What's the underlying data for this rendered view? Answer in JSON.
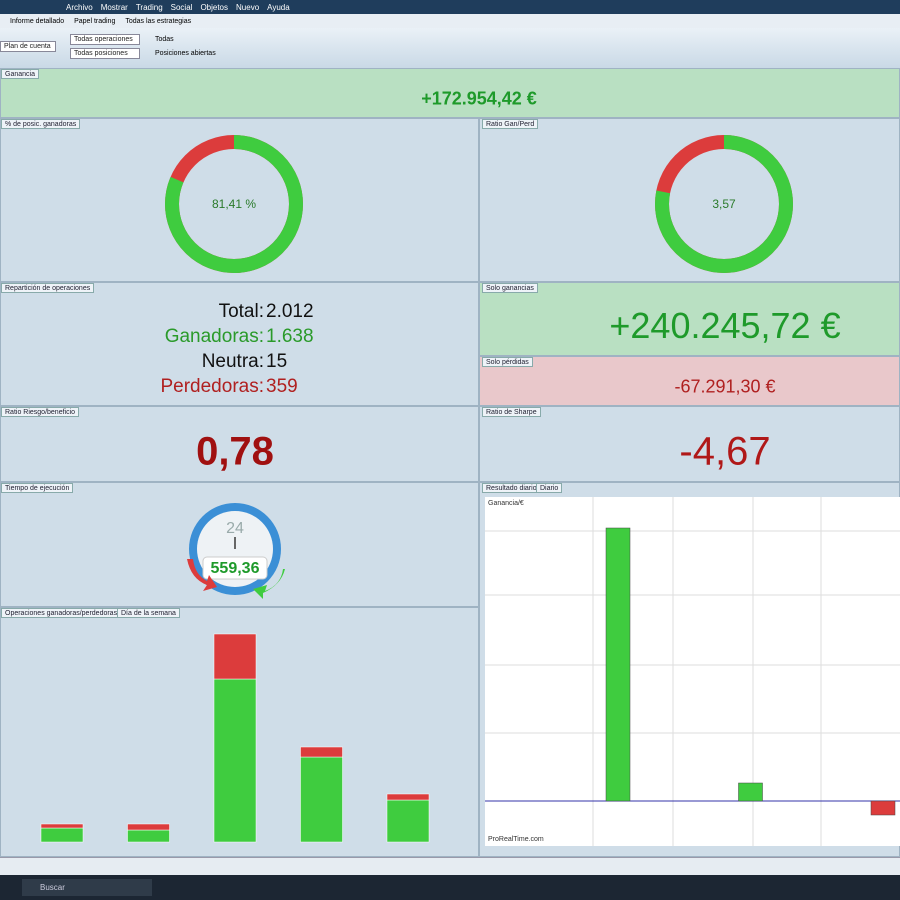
{
  "menu": [
    "Archivo",
    "Mostrar",
    "Trading",
    "Social",
    "Objetos",
    "Nuevo",
    "Ayuda"
  ],
  "toolbar": [
    "Informe detallado",
    "Papel trading",
    "Todas las estrategias"
  ],
  "filters": [
    "Todas operaciones",
    "Todas posiciones",
    "Todas",
    "Posiciones abiertas",
    "Plan de cuenta"
  ],
  "panels": {
    "profit": {
      "title": "Ganancia",
      "value": "+172.954,42 €"
    },
    "win_rate": {
      "title": "% de posic. ganadoras",
      "value": 81.41,
      "label": "81,41 %"
    },
    "gain_loss_ratio": {
      "title": "Ratio Gan/Perd",
      "value": 3.57,
      "label": "3,57"
    },
    "breakdown": {
      "title": "Repartición de operaciones",
      "rows": [
        {
          "label": "Total:",
          "value": "2.012"
        },
        {
          "label": "Ganadoras:",
          "value": "1.638"
        },
        {
          "label": "Neutra:",
          "value": "15"
        },
        {
          "label": "Perdedoras:",
          "value": "359"
        }
      ]
    },
    "gains": {
      "title": "Solo ganancias",
      "value": "+240.245,72 €"
    },
    "losses": {
      "title": "Solo pérdidas",
      "value": "-67.291,30 €"
    },
    "risk_reward": {
      "title": "Ratio Riesgo/beneficio",
      "value": "0,78"
    },
    "sharpe": {
      "title": "Ratio de Sharpe",
      "value": "-4,67"
    },
    "exec_time": {
      "title": "Tiempo de ejecución",
      "dial": "24",
      "value": "559,36"
    }
  },
  "chart_data": [
    {
      "type": "bar",
      "title": "Operaciones ganadoras/perdedoras",
      "option": "Día de la semana",
      "categories": [
        null,
        null,
        null,
        null,
        null
      ],
      "series": [
        {
          "color": "#3fcc3f",
          "values": [
            14,
            12,
            163,
            85,
            42
          ]
        },
        {
          "color": "#dc3c3c",
          "values": [
            4,
            6,
            45,
            10,
            6
          ]
        }
      ]
    },
    {
      "type": "bar",
      "title": "Resultado diario",
      "option": "Diario",
      "legend": "Ganancia/€",
      "footer": "ProRealTime.com",
      "categories": [
        null,
        null,
        null
      ],
      "values": [
        273,
        18,
        -14
      ],
      "pos_color": "#3fcc3f",
      "neg_color": "#dc3c3c"
    }
  ],
  "taskbar": {
    "search": "Buscar"
  }
}
